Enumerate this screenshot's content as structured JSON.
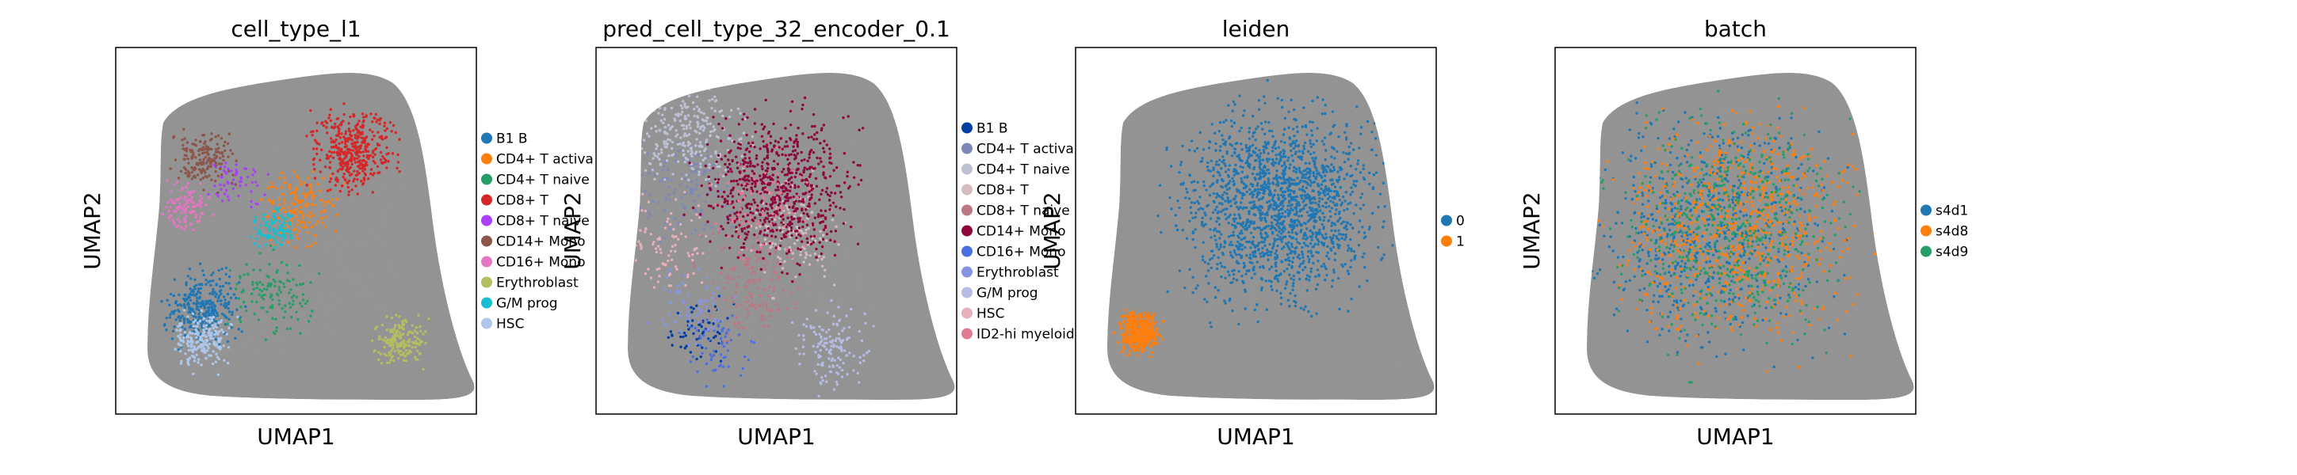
{
  "chart_data": [
    {
      "type": "scatter",
      "title": "cell_type_l1",
      "xlabel": "UMAP1",
      "ylabel": "UMAP2",
      "grid": false,
      "legend_placement": "right",
      "background_color": "#808080",
      "categories": [
        {
          "label": "B1 B",
          "color": "#1f77b4"
        },
        {
          "label": "CD4+ T activa",
          "color": "#ff7f0e"
        },
        {
          "label": "CD4+ T naive",
          "color": "#279e68"
        },
        {
          "label": "CD8+ T",
          "color": "#d62728"
        },
        {
          "label": "CD8+ T naive",
          "color": "#aa40fc"
        },
        {
          "label": "CD14+ Mono",
          "color": "#8c564b"
        },
        {
          "label": "CD16+ Mono",
          "color": "#e377c2"
        },
        {
          "label": "Erythroblast",
          "color": "#b5bd61"
        },
        {
          "label": "G/M prog",
          "color": "#17becf"
        },
        {
          "label": "HSC",
          "color": "#aec7e8"
        }
      ]
    },
    {
      "type": "scatter",
      "title": "pred_cell_type_32_encoder_0.1",
      "xlabel": "UMAP1",
      "ylabel": "UMAP2",
      "grid": false,
      "legend_placement": "right",
      "background_color": "#808080",
      "categories": [
        {
          "label": "B1 B",
          "color": "#023fa5"
        },
        {
          "label": "CD4+ T activa",
          "color": "#7d87b9"
        },
        {
          "label": "CD4+ T naive",
          "color": "#bec1d4"
        },
        {
          "label": "CD8+ T",
          "color": "#d6bcc0"
        },
        {
          "label": "CD8+ T naive",
          "color": "#bb7784"
        },
        {
          "label": "CD14+ Mono",
          "color": "#8e063b"
        },
        {
          "label": "CD16+ Mono",
          "color": "#4a6fe3"
        },
        {
          "label": "Erythroblast",
          "color": "#8595e1"
        },
        {
          "label": "G/M prog",
          "color": "#b5bbe3"
        },
        {
          "label": "HSC",
          "color": "#e6afb9"
        },
        {
          "label": "ID2-hi myeloid",
          "color": "#e07b91"
        }
      ]
    },
    {
      "type": "scatter",
      "title": "leiden",
      "xlabel": "UMAP1",
      "ylabel": "UMAP2",
      "grid": false,
      "legend_placement": "right",
      "background_color": "#808080",
      "categories": [
        {
          "label": "0",
          "color": "#1f77b4"
        },
        {
          "label": "1",
          "color": "#ff7f0e"
        }
      ]
    },
    {
      "type": "scatter",
      "title": "batch",
      "xlabel": "UMAP1",
      "ylabel": "UMAP2",
      "grid": false,
      "legend_placement": "right",
      "background_color": "#808080",
      "categories": [
        {
          "label": "s4d1",
          "color": "#1f77b4"
        },
        {
          "label": "s4d8",
          "color": "#ff7f0e"
        },
        {
          "label": "s4d9",
          "color": "#279e68"
        }
      ]
    }
  ]
}
